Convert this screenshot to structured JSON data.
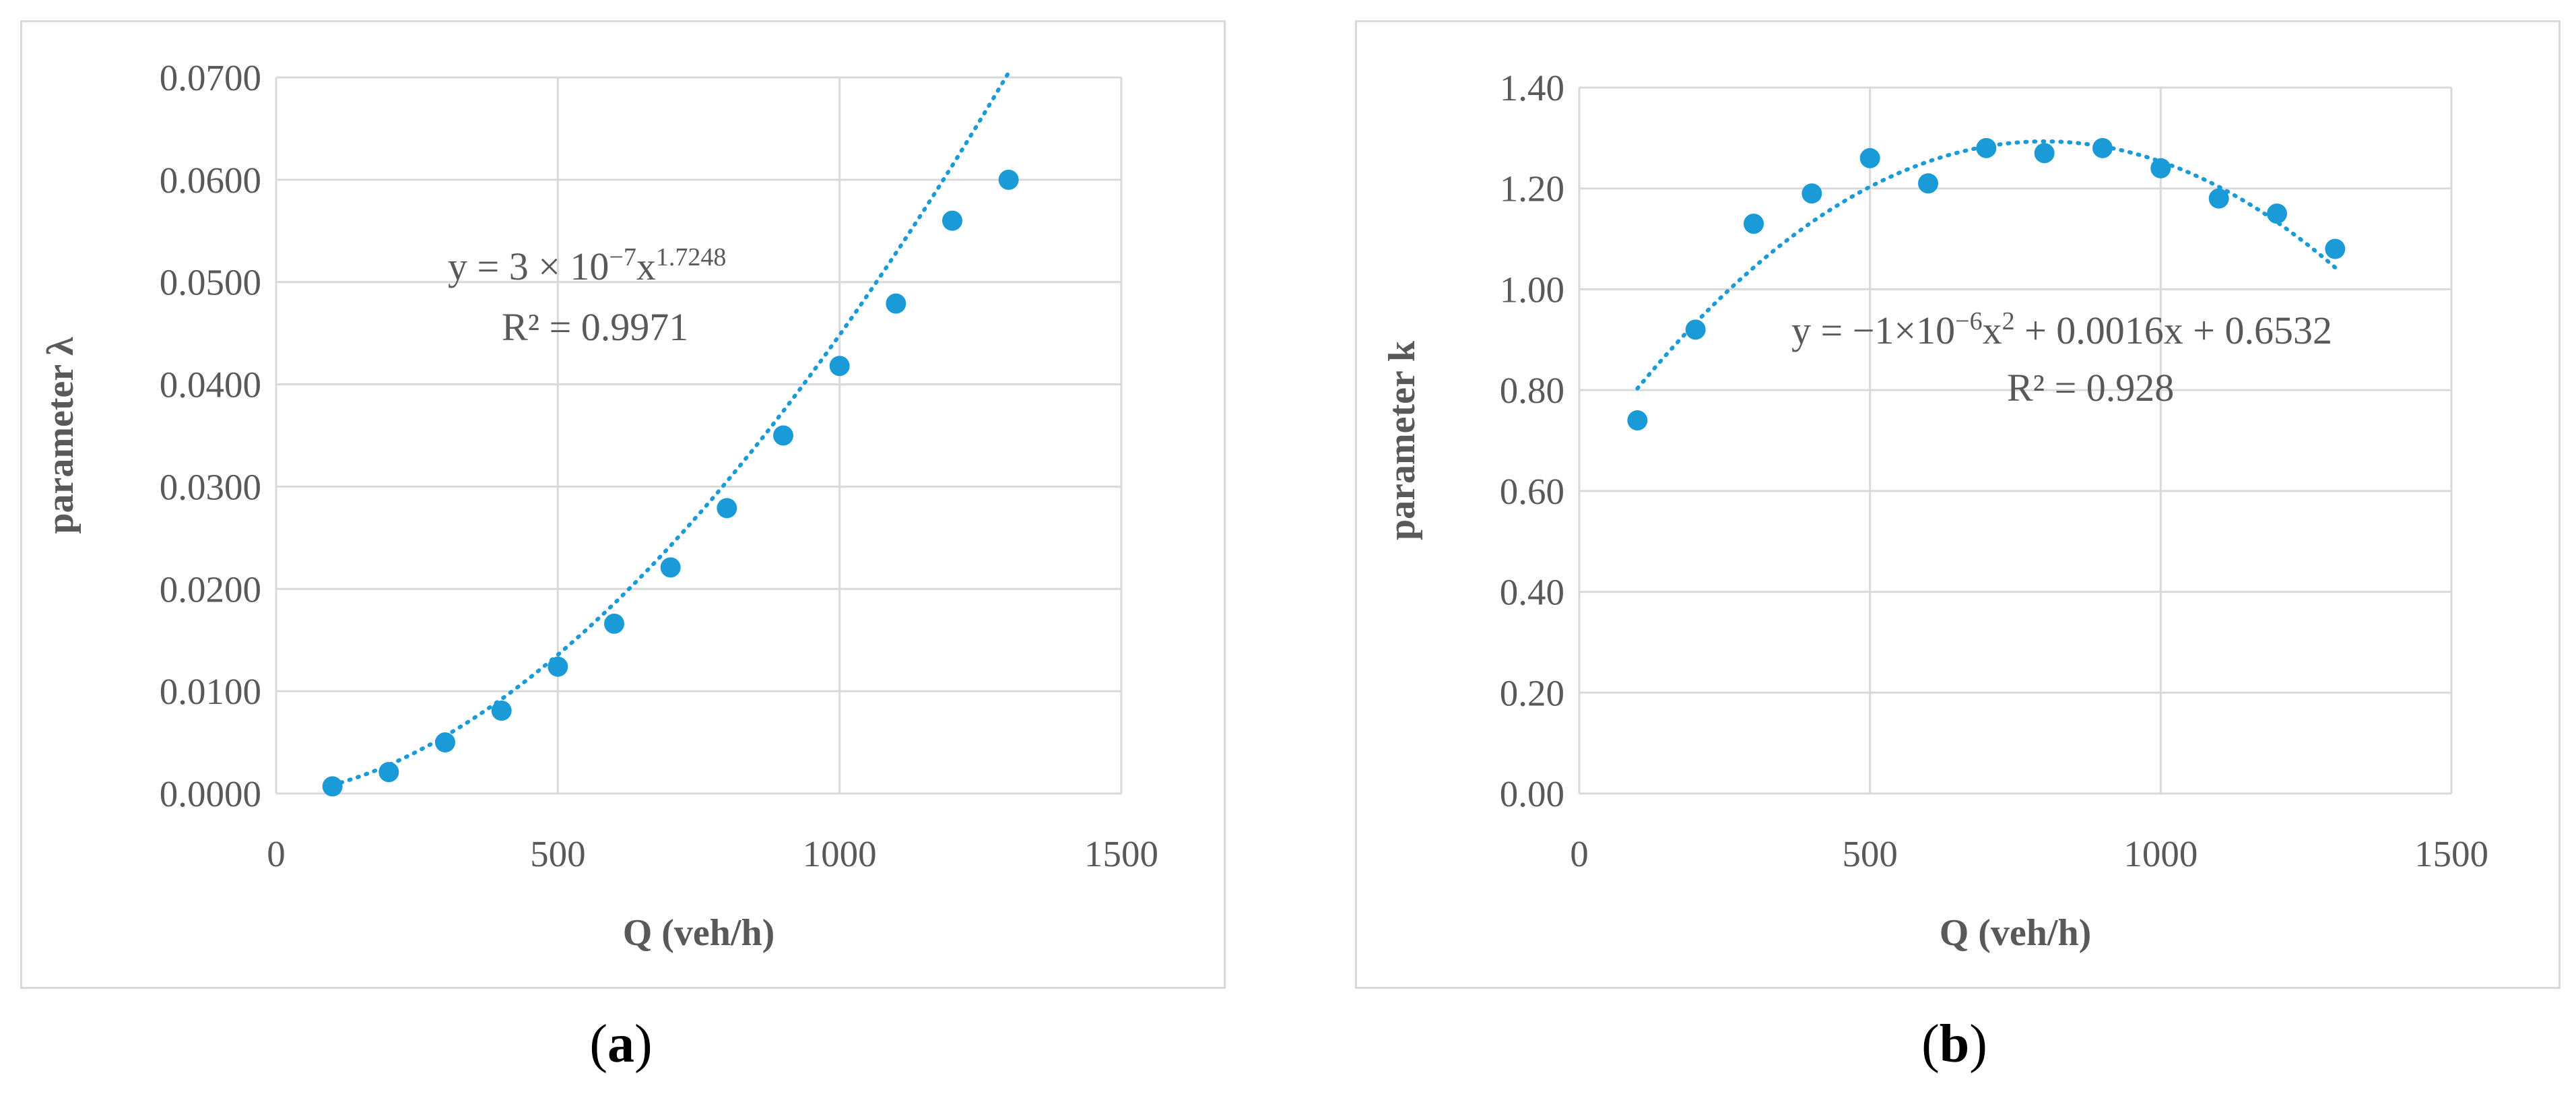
{
  "chart_data": [
    {
      "type": "scatter",
      "caption": "a",
      "xlabel": "Q (veh/h)",
      "ylabel": "parameter λ",
      "xlim": [
        0,
        1500
      ],
      "ylim": [
        0,
        0.07
      ],
      "x_ticks": [
        "0",
        "500",
        "1000",
        "1500"
      ],
      "y_ticks": [
        "0.0000",
        "0.0100",
        "0.0200",
        "0.0300",
        "0.0400",
        "0.0500",
        "0.0600",
        "0.0700"
      ],
      "grid": true,
      "marker_color": "#1b9ad8",
      "points": [
        {
          "x": 100,
          "y": 0.0007
        },
        {
          "x": 200,
          "y": 0.0021
        },
        {
          "x": 300,
          "y": 0.005
        },
        {
          "x": 400,
          "y": 0.0081
        },
        {
          "x": 500,
          "y": 0.0124
        },
        {
          "x": 600,
          "y": 0.0166
        },
        {
          "x": 700,
          "y": 0.0221
        },
        {
          "x": 800,
          "y": 0.0279
        },
        {
          "x": 900,
          "y": 0.035
        },
        {
          "x": 1000,
          "y": 0.0418
        },
        {
          "x": 1100,
          "y": 0.0479
        },
        {
          "x": 1200,
          "y": 0.056
        },
        {
          "x": 1300,
          "y": 0.06
        }
      ],
      "trendline": {
        "type": "power",
        "coef": 3e-07,
        "exponent": 1.7248,
        "x_range": [
          100,
          1300
        ],
        "equation_parts": [
          "y = 3 × 10",
          "−7",
          "x",
          "1.7248"
        ],
        "r2_label": "R² = 0.9971"
      }
    },
    {
      "type": "scatter",
      "caption": "b",
      "xlabel": "Q (veh/h)",
      "ylabel": "parameter k",
      "xlim": [
        0,
        1500
      ],
      "ylim": [
        0,
        1.4
      ],
      "x_ticks": [
        "0",
        "500",
        "1000",
        "1500"
      ],
      "y_ticks": [
        "0.00",
        "0.20",
        "0.40",
        "0.60",
        "0.80",
        "1.00",
        "1.20",
        "1.40"
      ],
      "grid": true,
      "marker_color": "#1b9ad8",
      "points": [
        {
          "x": 100,
          "y": 0.74
        },
        {
          "x": 200,
          "y": 0.92
        },
        {
          "x": 300,
          "y": 1.13
        },
        {
          "x": 400,
          "y": 1.19
        },
        {
          "x": 500,
          "y": 1.26
        },
        {
          "x": 600,
          "y": 1.21
        },
        {
          "x": 700,
          "y": 1.28
        },
        {
          "x": 800,
          "y": 1.27
        },
        {
          "x": 900,
          "y": 1.28
        },
        {
          "x": 1000,
          "y": 1.24
        },
        {
          "x": 1100,
          "y": 1.18
        },
        {
          "x": 1200,
          "y": 1.15
        },
        {
          "x": 1300,
          "y": 1.08
        }
      ],
      "trendline": {
        "type": "polynomial",
        "a": -1e-06,
        "b": 0.0016,
        "c": 0.6532,
        "x_range": [
          100,
          1300
        ],
        "equation_parts": [
          "y = −1×10",
          "−6",
          "x",
          "2",
          " + 0.0016x + 0.6532"
        ],
        "r2_label": "R² = 0.928"
      }
    }
  ]
}
